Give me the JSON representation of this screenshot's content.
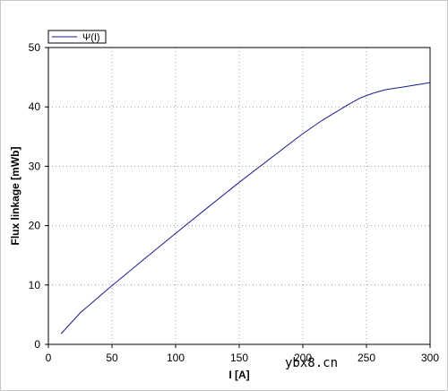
{
  "chart_data": {
    "type": "line",
    "title": "",
    "xlabel": "I [A]",
    "ylabel": "Flux linkage [mWb]",
    "xlim": [
      0,
      300
    ],
    "ylim": [
      0,
      50
    ],
    "xticks": [
      0,
      50,
      100,
      150,
      200,
      250,
      300
    ],
    "yticks": [
      0,
      10,
      20,
      30,
      40,
      50
    ],
    "grid": true,
    "legend": "top-left",
    "series": [
      {
        "name": "Ψ(I)",
        "color": "#1a1a8c",
        "x": [
          10,
          25,
          50,
          75,
          100,
          125,
          150,
          175,
          200,
          215,
          225,
          235,
          245,
          255,
          265,
          280,
          300
        ],
        "y": [
          1.8,
          5.3,
          9.9,
          14.3,
          18.7,
          23.0,
          27.3,
          31.4,
          35.5,
          37.7,
          39.0,
          40.3,
          41.5,
          42.3,
          42.9,
          43.4,
          44.1
        ]
      }
    ]
  },
  "watermark": "ybx8.cn"
}
